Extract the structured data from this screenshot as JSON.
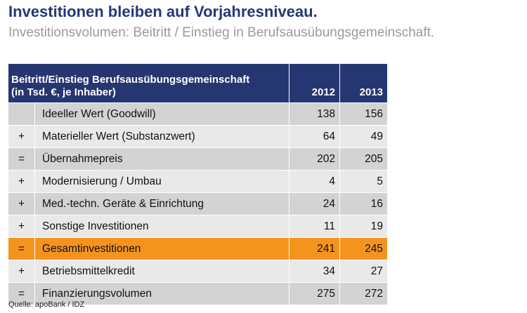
{
  "title": "Investitionen bleiben auf Vorjahresniveau.",
  "subtitle": "Investitionsvolumen: Beitritt / Einstieg in Berufsausübungsgemeinschaft.",
  "source": "Quelle: apoBank / IDZ",
  "colors": {
    "header_bg": "#263671",
    "title": "#233876",
    "highlight": "#f5931f",
    "row_dark": "#d3d3d3",
    "row_light": "#e9e9e9"
  },
  "chart_data": {
    "type": "table",
    "header": {
      "label_line1": "Beitritt/Einstieg Berufsausübungsgemeinschaft",
      "label_line2": "(in Tsd. €, je Inhaber)",
      "years": [
        "2012",
        "2013"
      ]
    },
    "rows": [
      {
        "op": "",
        "label": "Ideeller Wert (Goodwill)",
        "v2012": 138,
        "v2013": 156,
        "highlight": false
      },
      {
        "op": "+",
        "label": "Materieller Wert (Substanzwert)",
        "v2012": 64,
        "v2013": 49,
        "highlight": false
      },
      {
        "op": "=",
        "label": "Übernahmepreis",
        "v2012": 202,
        "v2013": 205,
        "highlight": false
      },
      {
        "op": "+",
        "label": "Modernisierung / Umbau",
        "v2012": 4,
        "v2013": 5,
        "highlight": false
      },
      {
        "op": "+",
        "label": "Med.-techn. Geräte & Einrichtung",
        "v2012": 24,
        "v2013": 16,
        "highlight": false
      },
      {
        "op": "+",
        "label": "Sonstige Investitionen",
        "v2012": 11,
        "v2013": 19,
        "highlight": false
      },
      {
        "op": "=",
        "label": "Gesamtinvestitionen",
        "v2012": 241,
        "v2013": 245,
        "highlight": true
      },
      {
        "op": "+",
        "label": "Betriebsmittelkredit",
        "v2012": 34,
        "v2013": 27,
        "highlight": false
      },
      {
        "op": "=",
        "label": "Finanzierungsvolumen",
        "v2012": 275,
        "v2013": 272,
        "highlight": false
      }
    ]
  }
}
